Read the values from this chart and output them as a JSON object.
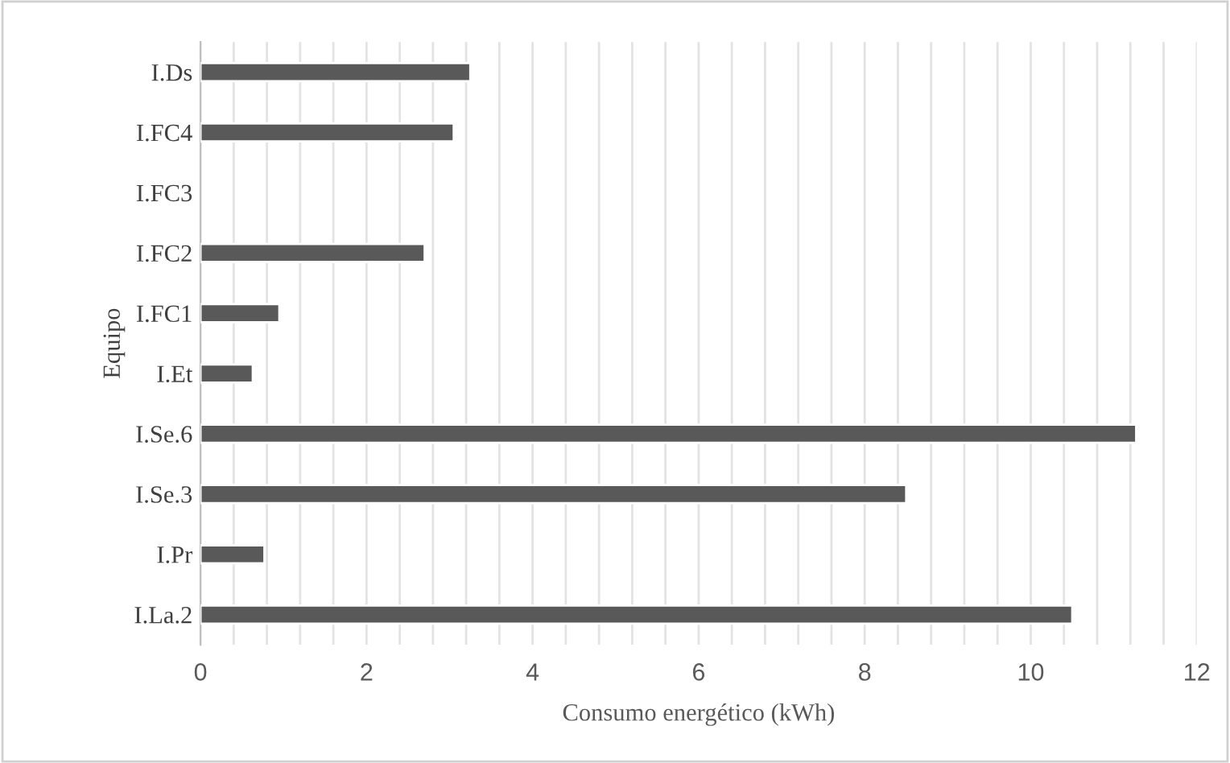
{
  "chart_data": {
    "type": "bar",
    "orientation": "horizontal",
    "categories": [
      "I.Ds",
      "I.FC4",
      "I.FC3",
      "I.FC2",
      "I.FC1",
      "I.Et",
      "I.Se.6",
      "I.Se.3",
      "I.Pr",
      "I.La.2"
    ],
    "values": [
      3.25,
      3.05,
      null,
      2.7,
      0.95,
      0.63,
      11.27,
      8.5,
      0.77,
      10.5
    ],
    "color": "#595959",
    "xlabel": "Consumo energético (kWh)",
    "ylabel": "Equipo",
    "xlim": [
      0,
      12
    ],
    "xticks": [
      0,
      {
        "value": 0.4,
        "label": null
      },
      {
        "value": 0.8,
        "label": null
      },
      {
        "value": 1.2,
        "label": null
      },
      {
        "value": 1.6,
        "label": null
      },
      2,
      {
        "value": 2.4,
        "label": null
      },
      {
        "value": 2.8,
        "label": null
      },
      {
        "value": 3.2,
        "label": null
      },
      {
        "value": 3.6,
        "label": null
      },
      4,
      {
        "value": 4.4,
        "label": null
      },
      {
        "value": 4.8,
        "label": null
      },
      {
        "value": 5.2,
        "label": null
      },
      {
        "value": 5.6,
        "label": null
      },
      6,
      {
        "value": 6.4,
        "label": null
      },
      {
        "value": 6.8,
        "label": null
      },
      {
        "value": 7.2,
        "label": null
      },
      {
        "value": 7.6,
        "label": null
      },
      8,
      {
        "value": 8.4,
        "label": null
      },
      {
        "value": 8.8,
        "label": null
      },
      {
        "value": 9.2,
        "label": null
      },
      {
        "value": 9.6,
        "label": null
      },
      10,
      {
        "value": 10.4,
        "label": null
      },
      {
        "value": 10.8,
        "label": null
      },
      {
        "value": 11.2,
        "label": null
      },
      {
        "value": 11.6,
        "label": null
      },
      12
    ],
    "grid": "x",
    "legend": false
  }
}
